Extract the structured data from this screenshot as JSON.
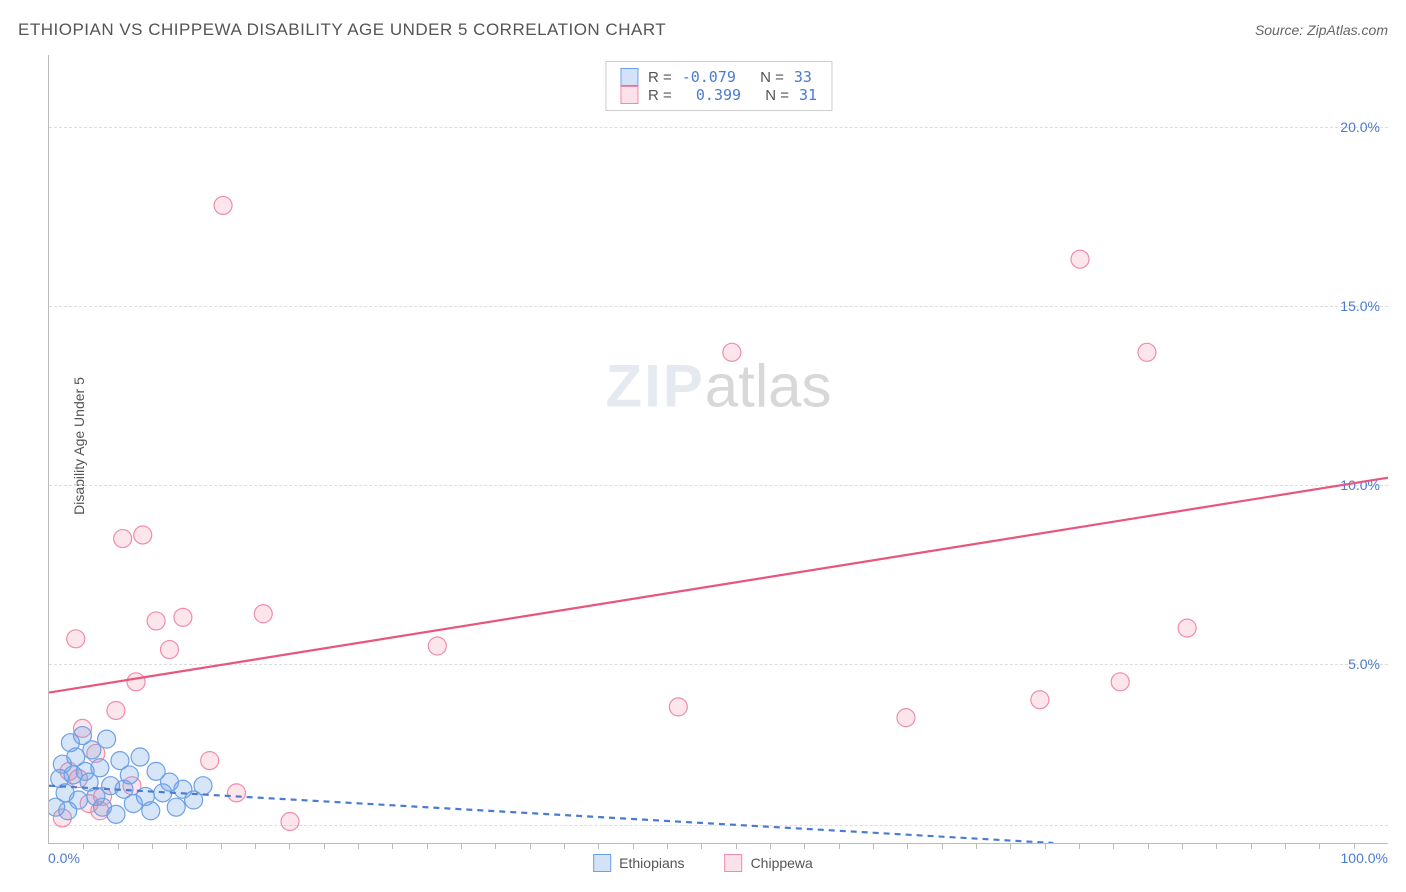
{
  "title": "ETHIOPIAN VS CHIPPEWA DISABILITY AGE UNDER 5 CORRELATION CHART",
  "source": "Source: ZipAtlas.com",
  "ylabel": "Disability Age Under 5",
  "watermark_zip": "ZIP",
  "watermark_atlas": "atlas",
  "chart": {
    "type": "scatter",
    "xlim": [
      0,
      100
    ],
    "ylim": [
      0,
      22
    ],
    "x_left_label": "0.0%",
    "x_right_label": "100.0%",
    "y_ticks": [
      {
        "val": 5,
        "label": "5.0%"
      },
      {
        "val": 10,
        "label": "10.0%"
      },
      {
        "val": 15,
        "label": "15.0%"
      },
      {
        "val": 20,
        "label": "20.0%"
      }
    ],
    "y_grid_extra": [
      0.5
    ],
    "x_minor_ticks_count": 38,
    "background_color": "#ffffff",
    "grid_color": "#dddddd",
    "marker_radius": 9,
    "marker_stroke_width": 1.2,
    "line_width": 2.2
  },
  "series": {
    "ethiopian": {
      "label": "Ethiopians",
      "fill": "rgba(110,160,230,0.28)",
      "stroke": "#6ea0e6",
      "line_color": "#4a7bd0",
      "line_dash": "6,5",
      "trend": {
        "x1": 0,
        "y1": 1.6,
        "x2": 75,
        "y2": 0
      },
      "legend": {
        "R": "-0.079",
        "N": "33"
      },
      "points": [
        [
          0.5,
          1.0
        ],
        [
          0.8,
          1.8
        ],
        [
          1.0,
          2.2
        ],
        [
          1.2,
          1.4
        ],
        [
          1.4,
          0.9
        ],
        [
          1.6,
          2.8
        ],
        [
          1.8,
          1.9
        ],
        [
          2.0,
          2.4
        ],
        [
          2.2,
          1.2
        ],
        [
          2.5,
          3.0
        ],
        [
          2.7,
          2.0
        ],
        [
          3.0,
          1.7
        ],
        [
          3.2,
          2.6
        ],
        [
          3.5,
          1.3
        ],
        [
          3.8,
          2.1
        ],
        [
          4.0,
          1.0
        ],
        [
          4.3,
          2.9
        ],
        [
          4.6,
          1.6
        ],
        [
          5.0,
          0.8
        ],
        [
          5.3,
          2.3
        ],
        [
          5.6,
          1.5
        ],
        [
          6.0,
          1.9
        ],
        [
          6.3,
          1.1
        ],
        [
          6.8,
          2.4
        ],
        [
          7.2,
          1.3
        ],
        [
          7.6,
          0.9
        ],
        [
          8.0,
          2.0
        ],
        [
          8.5,
          1.4
        ],
        [
          9.0,
          1.7
        ],
        [
          9.5,
          1.0
        ],
        [
          10.0,
          1.5
        ],
        [
          10.8,
          1.2
        ],
        [
          11.5,
          1.6
        ]
      ]
    },
    "chippewa": {
      "label": "Chippewa",
      "fill": "rgba(240,140,170,0.22)",
      "stroke": "#f08caa",
      "line_color": "#e8557d",
      "line_dash": "none",
      "trend": {
        "x1": 0,
        "y1": 4.2,
        "x2": 100,
        "y2": 10.2
      },
      "legend": {
        "R": "0.399",
        "N": "31"
      },
      "points": [
        [
          1.0,
          0.7
        ],
        [
          1.5,
          2.0
        ],
        [
          2.0,
          5.7
        ],
        [
          2.5,
          3.2
        ],
        [
          3.0,
          1.1
        ],
        [
          3.5,
          2.5
        ],
        [
          4.0,
          1.3
        ],
        [
          5.0,
          3.7
        ],
        [
          5.5,
          8.5
        ],
        [
          6.5,
          4.5
        ],
        [
          7.0,
          8.6
        ],
        [
          8.0,
          6.2
        ],
        [
          9.0,
          5.4
        ],
        [
          10.0,
          6.3
        ],
        [
          12.0,
          2.3
        ],
        [
          13.0,
          17.8
        ],
        [
          14.0,
          1.4
        ],
        [
          16.0,
          6.4
        ],
        [
          18.0,
          0.6
        ],
        [
          29.0,
          5.5
        ],
        [
          47.0,
          3.8
        ],
        [
          51.0,
          13.7
        ],
        [
          64.0,
          3.5
        ],
        [
          74.0,
          4.0
        ],
        [
          77.0,
          16.3
        ],
        [
          80.0,
          4.5
        ],
        [
          82.0,
          13.7
        ],
        [
          85.0,
          6.0
        ],
        [
          2.2,
          1.8
        ],
        [
          3.8,
          0.9
        ],
        [
          6.2,
          1.6
        ]
      ]
    }
  },
  "top_legend": {
    "r_label": "R =",
    "n_label": "N ="
  },
  "bottom_legend": {
    "ethiopian": "Ethiopians",
    "chippewa": "Chippewa"
  }
}
